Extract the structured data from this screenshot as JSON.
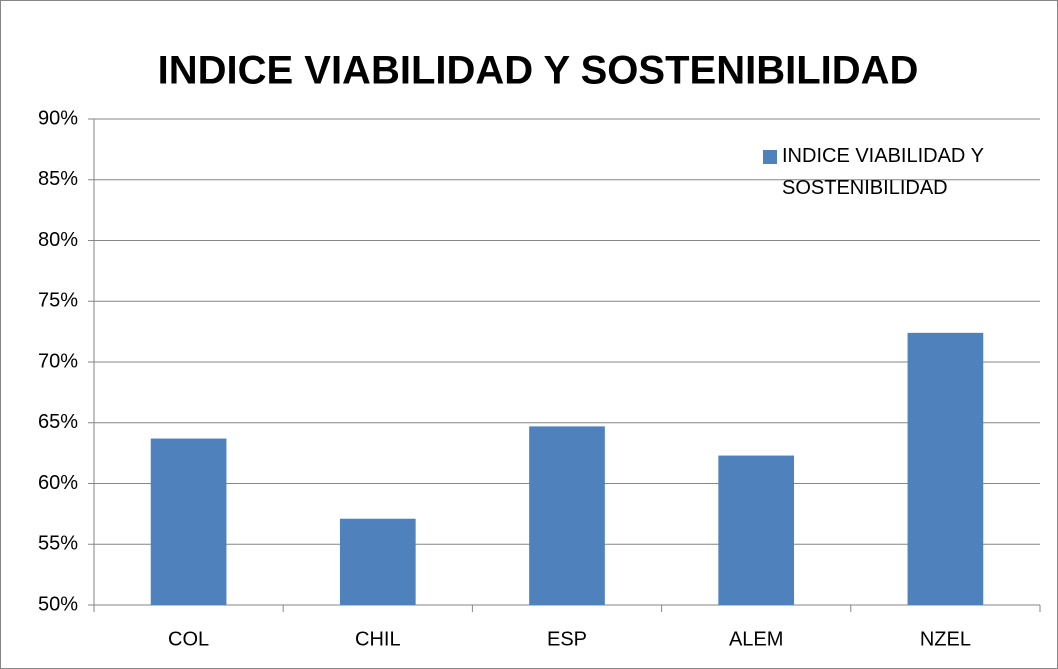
{
  "chart_data": {
    "type": "bar",
    "title": "INDICE VIABILIDAD Y SOSTENIBILIDAD",
    "categories": [
      "COL",
      "CHIL",
      "ESP",
      "ALEM",
      "NZEL"
    ],
    "series": [
      {
        "name": "INDICE VIABILIDAD Y SOSTENIBILIDAD",
        "color": "#4f81bd",
        "values": [
          63.7,
          57.1,
          64.7,
          62.3,
          72.4
        ]
      }
    ],
    "ylim": [
      50,
      90
    ],
    "yticks": [
      {
        "value": 50,
        "label": "50%"
      },
      {
        "value": 55,
        "label": "55%"
      },
      {
        "value": 60,
        "label": "60%"
      },
      {
        "value": 65,
        "label": "65%"
      },
      {
        "value": 70,
        "label": "70%"
      },
      {
        "value": 75,
        "label": "75%"
      },
      {
        "value": 80,
        "label": "80%"
      },
      {
        "value": 85,
        "label": "85%"
      },
      {
        "value": 90,
        "label": "90%"
      }
    ],
    "grid": true,
    "legend": "top-right"
  }
}
